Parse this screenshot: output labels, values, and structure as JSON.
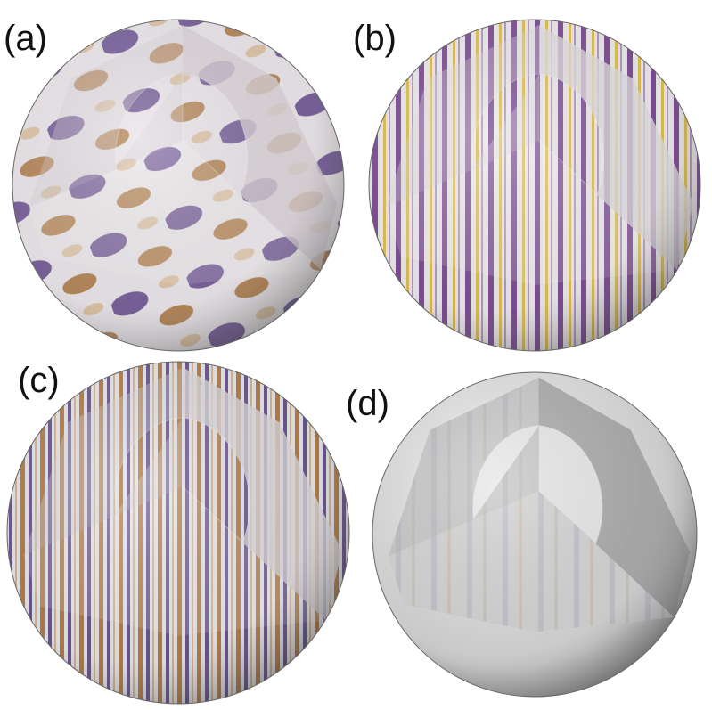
{
  "panels": [
    {
      "label": "(a)"
    },
    {
      "label": "(b)"
    },
    {
      "label": "(c)"
    },
    {
      "label": "(d)"
    }
  ]
}
